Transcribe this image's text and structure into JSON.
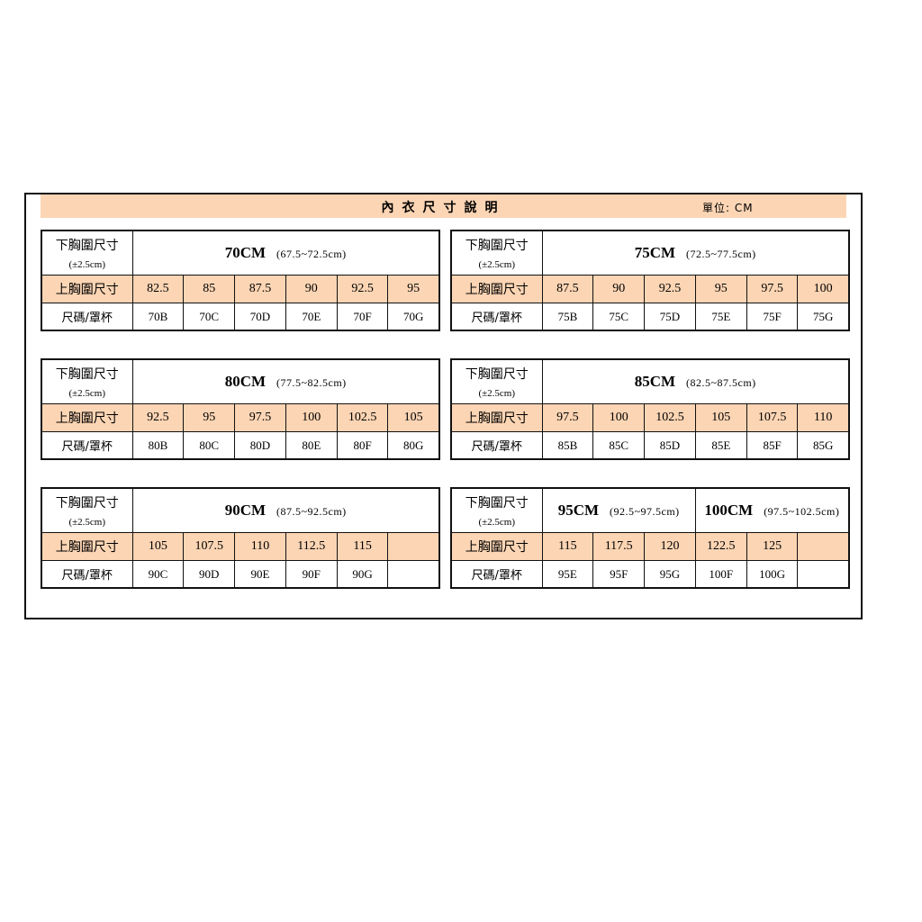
{
  "header": {
    "title": "內衣尺寸說明",
    "unit": "單位: CM"
  },
  "labels": {
    "under": "下胸圍尺寸",
    "tolerance": "(±2.5cm)",
    "over": "上胸圍尺寸",
    "size": "尺碼/罩杯"
  },
  "tables": [
    {
      "groups": [
        {
          "band": "70CM",
          "range": "(67.5~72.5cm)",
          "span": 6
        }
      ],
      "over": [
        "82.5",
        "85",
        "87.5",
        "90",
        "92.5",
        "95"
      ],
      "sizes": [
        "70B",
        "70C",
        "70D",
        "70E",
        "70F",
        "70G"
      ]
    },
    {
      "groups": [
        {
          "band": "75CM",
          "range": "(72.5~77.5cm)",
          "span": 6
        }
      ],
      "over": [
        "87.5",
        "90",
        "92.5",
        "95",
        "97.5",
        "100"
      ],
      "sizes": [
        "75B",
        "75C",
        "75D",
        "75E",
        "75F",
        "75G"
      ]
    },
    {
      "groups": [
        {
          "band": "80CM",
          "range": "(77.5~82.5cm)",
          "span": 6
        }
      ],
      "over": [
        "92.5",
        "95",
        "97.5",
        "100",
        "102.5",
        "105"
      ],
      "sizes": [
        "80B",
        "80C",
        "80D",
        "80E",
        "80F",
        "80G"
      ]
    },
    {
      "groups": [
        {
          "band": "85CM",
          "range": "(82.5~87.5cm)",
          "span": 6
        }
      ],
      "over": [
        "97.5",
        "100",
        "102.5",
        "105",
        "107.5",
        "110"
      ],
      "sizes": [
        "85B",
        "85C",
        "85D",
        "85E",
        "85F",
        "85G"
      ]
    },
    {
      "groups": [
        {
          "band": "90CM",
          "range": "(87.5~92.5cm)",
          "span": 6
        }
      ],
      "over": [
        "105",
        "107.5",
        "110",
        "112.5",
        "115",
        ""
      ],
      "sizes": [
        "90C",
        "90D",
        "90E",
        "90F",
        "90G",
        ""
      ]
    },
    {
      "groups": [
        {
          "band": "95CM",
          "range": "(92.5~97.5cm)",
          "span": 3
        },
        {
          "band": "100CM",
          "range": "(97.5~102.5cm)",
          "span": 3
        }
      ],
      "over": [
        "115",
        "117.5",
        "120",
        "122.5",
        "125",
        ""
      ],
      "sizes": [
        "95E",
        "95F",
        "95G",
        "100F",
        "100G",
        ""
      ]
    }
  ]
}
